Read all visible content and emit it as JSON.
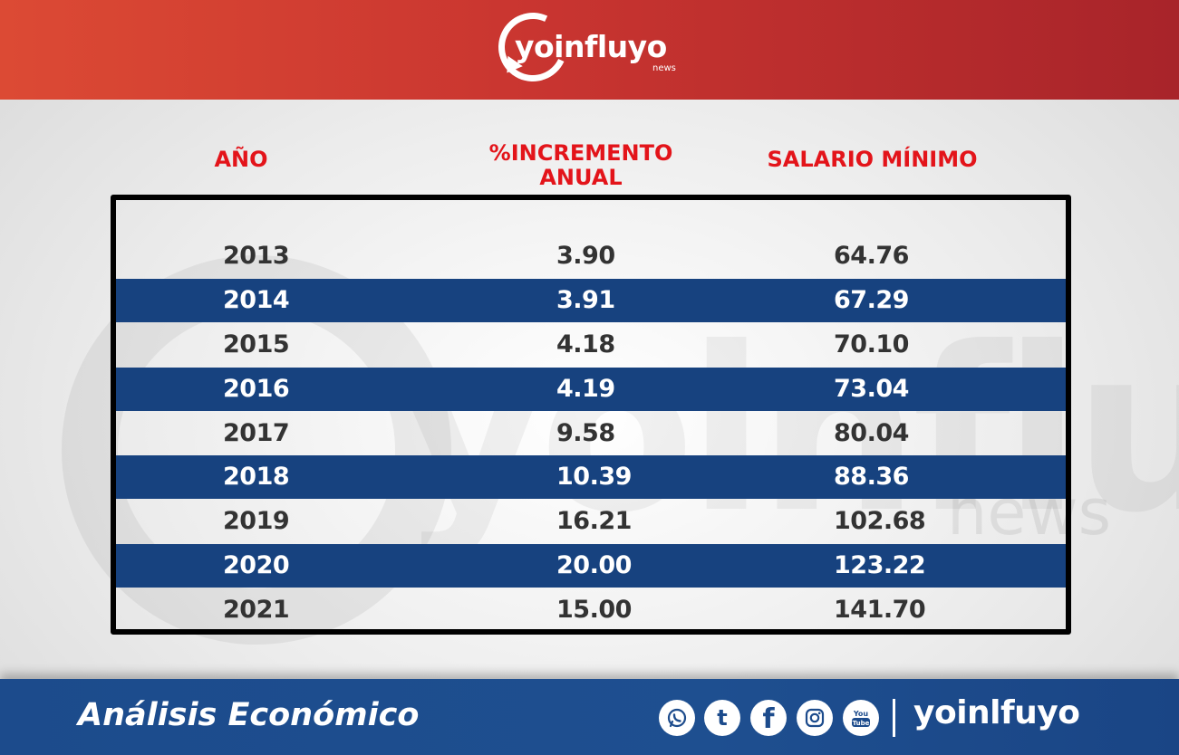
{
  "header": {
    "logo_text": "yoinfluyo",
    "logo_sub": "news"
  },
  "watermark": {
    "text": "yoinfluyo",
    "sub": "news"
  },
  "table": {
    "columns": [
      "AÑO",
      "%INCREMENTO ANUAL",
      "SALARIO MÍNIMO"
    ],
    "rows": [
      [
        "2013",
        "3.90",
        "64.76"
      ],
      [
        "2014",
        "3.91",
        "67.29"
      ],
      [
        "2015",
        "4.18",
        "70.10"
      ],
      [
        "2016",
        "4.19",
        "73.04"
      ],
      [
        "2017",
        "9.58",
        "80.04"
      ],
      [
        "2018",
        "10.39",
        "88.36"
      ],
      [
        "2019",
        "16.21",
        "102.68"
      ],
      [
        "2020",
        "20.00",
        "123.22"
      ],
      [
        "2021",
        "15.00",
        "141.70"
      ]
    ]
  },
  "footer": {
    "title": "Análisis Económico",
    "social_icons": [
      "whatsapp-icon",
      "tumblr-icon",
      "facebook-icon",
      "instagram-icon",
      "youtube-icon"
    ],
    "tumblr_glyph": "t",
    "facebook_glyph": "f",
    "youtube_glyph_top": "You",
    "youtube_glyph_bottom": "Tube",
    "brand": "yoinlfuyo"
  },
  "colors": {
    "header_red": "#c93530",
    "header_accent": "#e3141a",
    "row_blue": "#17427f",
    "footer_blue": "#1c4b8c"
  }
}
